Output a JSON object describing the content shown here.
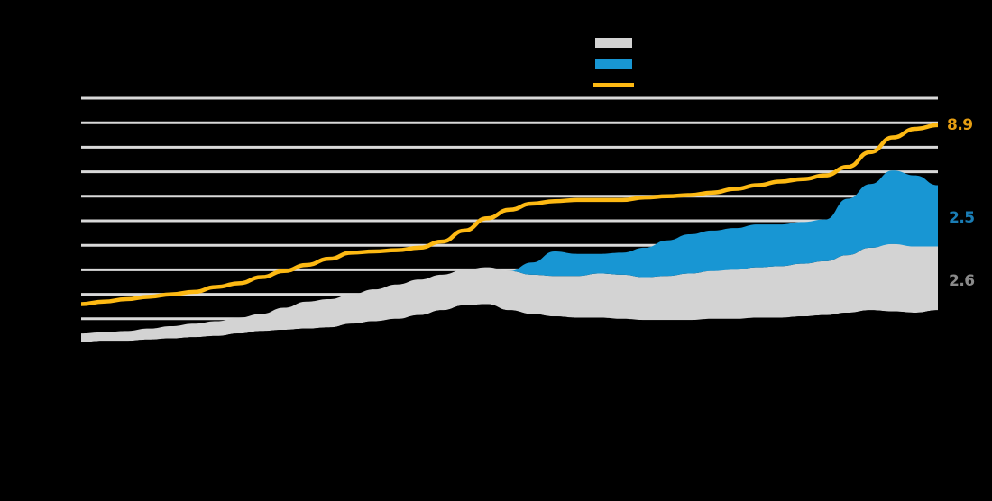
{
  "colors": {
    "background": "#000000",
    "grid": "#d9d9d9",
    "black_area": "#000000",
    "gray_area": "#d3d3d3",
    "blue_area": "#1896d3",
    "yellow_line": "#fdb913",
    "label_yellow": "#e69e12",
    "label_blue": "#1a7db5",
    "label_gray": "#8a8a8a"
  },
  "legend": {
    "items": [
      {
        "key": "gray",
        "label": "",
        "type": "box"
      },
      {
        "key": "blue",
        "label": "",
        "type": "box"
      },
      {
        "key": "yellow",
        "label": "",
        "type": "line"
      }
    ]
  },
  "end_labels": {
    "yellow": "8.9",
    "blue": "2.5",
    "gray": "2.6"
  },
  "chart_data": {
    "type": "area",
    "title": "",
    "xlabel": "",
    "ylabel": "",
    "grid": true,
    "gridlines_y": [
      1,
      2,
      3,
      4,
      5,
      6,
      7,
      8,
      9,
      10
    ],
    "ylim": [
      0,
      10
    ],
    "legend_position": "top-right",
    "x": [
      0,
      1,
      2,
      3,
      4,
      5,
      6,
      7,
      8,
      9,
      10,
      11,
      12,
      13,
      14,
      15,
      16,
      17,
      18,
      19,
      20,
      21,
      22,
      23,
      24,
      25,
      26,
      27,
      28,
      29,
      30,
      31,
      32,
      33,
      34,
      35,
      36,
      37,
      38
    ],
    "stacked": true,
    "series": [
      {
        "name": "black (base)",
        "color": "#000000",
        "values": [
          0.05,
          0.1,
          0.1,
          0.15,
          0.2,
          0.25,
          0.3,
          0.4,
          0.5,
          0.55,
          0.6,
          0.65,
          0.8,
          0.9,
          1.0,
          1.15,
          1.35,
          1.55,
          1.6,
          1.35,
          1.2,
          1.1,
          1.05,
          1.05,
          1.0,
          0.95,
          0.95,
          0.95,
          1.0,
          1.0,
          1.05,
          1.05,
          1.1,
          1.15,
          1.25,
          1.35,
          1.3,
          1.25,
          1.35
        ]
      },
      {
        "name": "gray",
        "color": "#d3d3d3",
        "values": [
          0.35,
          0.35,
          0.4,
          0.45,
          0.5,
          0.55,
          0.6,
          0.65,
          0.7,
          0.9,
          1.1,
          1.15,
          1.2,
          1.3,
          1.4,
          1.45,
          1.45,
          1.45,
          1.5,
          1.6,
          1.6,
          1.65,
          1.7,
          1.8,
          1.8,
          1.75,
          1.8,
          1.9,
          1.95,
          2.0,
          2.05,
          2.1,
          2.15,
          2.2,
          2.35,
          2.55,
          2.75,
          2.7,
          2.6
        ]
      },
      {
        "name": "blue",
        "color": "#1896d3",
        "values": [
          0,
          0,
          0,
          0,
          0,
          0,
          0,
          0,
          0,
          0,
          0,
          0,
          0,
          0,
          0,
          0,
          0,
          0,
          0,
          0,
          0.5,
          1.0,
          0.9,
          0.8,
          0.9,
          1.2,
          1.45,
          1.6,
          1.65,
          1.7,
          1.75,
          1.7,
          1.7,
          1.7,
          2.3,
          2.6,
          3.0,
          2.9,
          2.5
        ]
      }
    ],
    "line_series": [
      {
        "name": "yellow (total)",
        "color": "#fdb913",
        "values": [
          1.6,
          1.7,
          1.8,
          1.9,
          2.0,
          2.1,
          2.3,
          2.45,
          2.7,
          2.95,
          3.2,
          3.45,
          3.7,
          3.75,
          3.8,
          3.9,
          4.15,
          4.6,
          5.1,
          5.45,
          5.7,
          5.8,
          5.85,
          5.85,
          5.85,
          5.95,
          6.0,
          6.05,
          6.15,
          6.3,
          6.45,
          6.6,
          6.7,
          6.85,
          7.2,
          7.8,
          8.4,
          8.75,
          8.9
        ]
      }
    ],
    "annotations": [
      {
        "text": "8.9",
        "series": "yellow"
      },
      {
        "text": "2.5",
        "series": "blue"
      },
      {
        "text": "2.6",
        "series": "gray"
      }
    ]
  }
}
